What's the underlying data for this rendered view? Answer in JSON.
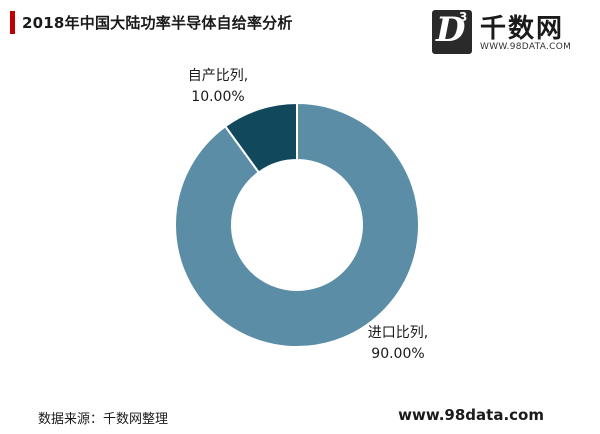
{
  "header": {
    "title": "2018年中国大陆功率半导体自给率分析",
    "accent_color": "#c00000"
  },
  "logo": {
    "badge_letter": "D",
    "badge_superscript": "3",
    "name": "千数网",
    "url": "WWW.98DATA.COM"
  },
  "chart_data": {
    "type": "pie",
    "variant": "donut",
    "title": "2018年中国大陆功率半导体自给率分析",
    "slices": [
      {
        "label": "进口比列,",
        "value_label": "90.00%",
        "value": 90.0,
        "color": "#5b8ea6"
      },
      {
        "label": "自产比列,",
        "value_label": "10.00%",
        "value": 10.0,
        "color": "#11485c"
      }
    ],
    "start_angle_deg": 0,
    "direction": "counterclockwise"
  },
  "footer": {
    "source": "数据来源：千数网整理",
    "site": "www.98data.com"
  }
}
